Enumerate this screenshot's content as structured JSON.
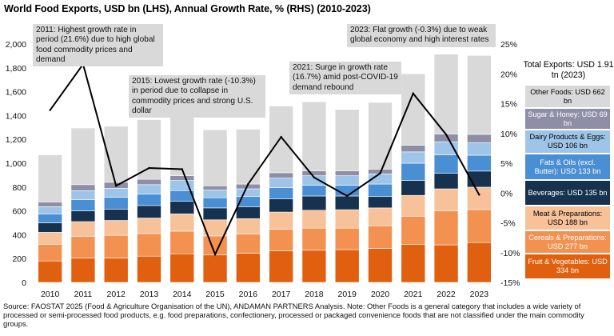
{
  "title": "World Food Exports, USD bn (LHS), Annual Growth Rate, % (RHS) (2010-2023)",
  "source_note": "Source: FAOSTAT 2025 (Food & Agriculture Organisation of the UN), ANDAMAN PARTNERS Analysis. Note: Other Foods is a general category that includes a wide variety of processed or semi-processed food products, e.g. food preparations, confectionery, processed or packaged convenience foods that are not classified under the main commodity groups.",
  "annotations": {
    "a2011": "2011: Highest growth rate in period (21.6%) due to high global food commodity prices and demand",
    "a2015": "2015: Lowest growth rate (-10.3%) in period due to collapse in commodity prices and strong U.S. dollar",
    "a2021": "2021: Surge in growth rate (16.7%) amid post-COVID-19 demand rebound",
    "a2023": "2023: Flat growth (-0.3%) due to weak global economy and high interest rates"
  },
  "legend": {
    "title": "Total Exports: USD 1.91 tn (2023)",
    "items": [
      {
        "label": "Other Foods: USD 662 bn",
        "color": "#d9d9d9",
        "text_color": "#000000"
      },
      {
        "label": "Sugar & Honey: USD 69 bn",
        "color": "#8e8ea6",
        "text_color": "#ffffff"
      },
      {
        "label": "Dairy Products & Eggs: USD 106 bn",
        "color": "#9ec5e8",
        "text_color": "#000000"
      },
      {
        "label": "Fats & Oils (excl. Butter): USD 133 bn",
        "color": "#4a8fd4",
        "text_color": "#ffffff"
      },
      {
        "label": "Beverages: USD 135 bn",
        "color": "#17324f",
        "text_color": "#ffffff"
      },
      {
        "label": "Meat & Preparations: USD 188 bn",
        "color": "#f7c19a",
        "text_color": "#000000"
      },
      {
        "label": "Cereals & Preparations: USD 277 bn",
        "color": "#f39250",
        "text_color": "#ffffff"
      },
      {
        "label": "Fruit & Vegetables: USD 334 bn",
        "color": "#e0600f",
        "text_color": "#ffffff"
      }
    ]
  },
  "chart_data": {
    "type": "bar",
    "stacked": true,
    "title": "World Food Exports, USD bn (LHS), Annual Growth Rate, % (RHS) (2010-2023)",
    "categories": [
      "2010",
      "2011",
      "2012",
      "2013",
      "2014",
      "2015",
      "2016",
      "2017",
      "2018",
      "2019",
      "2020",
      "2021",
      "2022",
      "2023"
    ],
    "y_left": {
      "min": 0,
      "max": 2000,
      "step": 200,
      "ticks": [
        "0",
        "200",
        "400",
        "600",
        "800",
        "1,000",
        "1,200",
        "1,400",
        "1,600",
        "1,800",
        "2,000"
      ]
    },
    "y_right": {
      "min": -15,
      "max": 25,
      "step": 5,
      "ticks": [
        "-15%",
        "-10%",
        "-5%",
        "0%",
        "5%",
        "10%",
        "15%",
        "20%",
        "25%"
      ]
    },
    "series": [
      {
        "name": "Fruit & Vegetables",
        "color": "#e0600f",
        "values": [
          180,
          205,
          205,
          220,
          240,
          230,
          245,
          265,
          270,
          275,
          285,
          320,
          315,
          334
        ]
      },
      {
        "name": "Cereals & Preparations",
        "color": "#f39250",
        "values": [
          140,
          180,
          190,
          190,
          190,
          160,
          160,
          180,
          185,
          180,
          190,
          235,
          285,
          277
        ]
      },
      {
        "name": "Meat & Preparations",
        "color": "#f7c19a",
        "values": [
          100,
          125,
          125,
          130,
          145,
          135,
          130,
          145,
          150,
          155,
          150,
          175,
          185,
          188
        ]
      },
      {
        "name": "Beverages",
        "color": "#17324f",
        "values": [
          80,
          90,
          95,
          105,
          105,
          100,
          100,
          110,
          120,
          115,
          95,
          125,
          130,
          135
        ]
      },
      {
        "name": "Fats & Oils (excl. Butter)",
        "color": "#4a8fd4",
        "values": [
          75,
          95,
          100,
          95,
          90,
          85,
          85,
          95,
          90,
          90,
          105,
          145,
          155,
          133
        ]
      },
      {
        "name": "Dairy Products & Eggs",
        "color": "#9ec5e8",
        "values": [
          60,
          75,
          75,
          80,
          85,
          65,
          65,
          80,
          80,
          80,
          85,
          95,
          110,
          106
        ]
      },
      {
        "name": "Sugar & Honey",
        "color": "#8e8ea6",
        "values": [
          40,
          50,
          50,
          45,
          40,
          35,
          40,
          45,
          40,
          40,
          40,
          55,
          65,
          69
        ]
      },
      {
        "name": "Other Foods",
        "color": "#d9d9d9",
        "values": [
          395,
          475,
          470,
          500,
          535,
          470,
          460,
          560,
          580,
          515,
          560,
          600,
          670,
          662
        ]
      }
    ],
    "growth_line": {
      "axis": "right",
      "color": "#000000",
      "values": [
        13.9,
        21.6,
        1.2,
        4.2,
        4.0,
        -10.3,
        1.5,
        9.4,
        2.6,
        -0.5,
        3.3,
        16.7,
        9.8,
        -0.3
      ]
    }
  }
}
